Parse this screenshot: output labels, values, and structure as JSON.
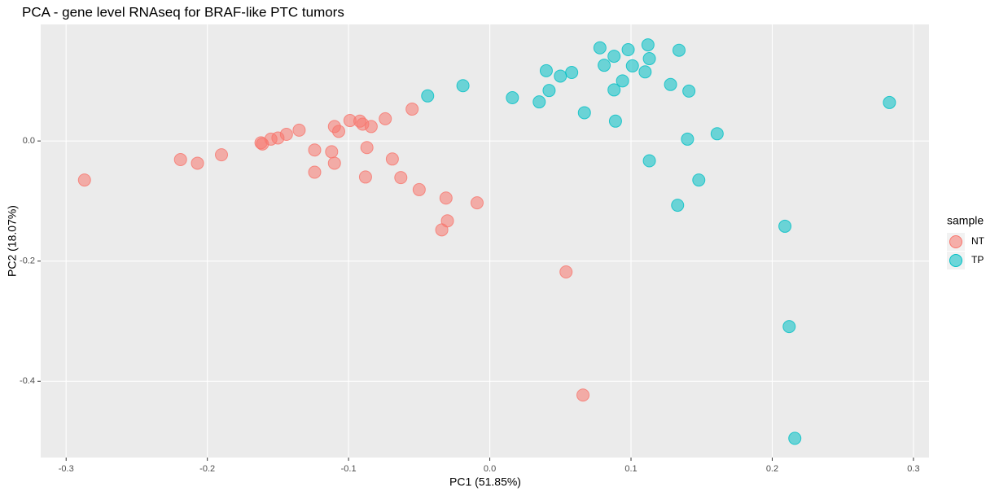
{
  "chart_data": {
    "type": "scatter",
    "title": "PCA - gene level RNAseq for BRAF-like PTC tumors",
    "x_label": "PC1 (51.85%)",
    "y_label": "PC2 (18.07%)",
    "legend_title": "sample",
    "legend_position": "right",
    "grid": true,
    "xlim": [
      -0.318,
      0.311
    ],
    "ylim": [
      -0.527,
      0.194
    ],
    "xticks": [
      -0.3,
      -0.2,
      -0.1,
      {
        "value": 0,
        "label": "0.0"
      },
      0.1,
      0.2,
      0.3
    ],
    "yticks": [
      -0.4,
      -0.2,
      {
        "value": 0,
        "label": "0.0"
      }
    ],
    "series": [
      {
        "name": "NT",
        "color": "#F8766D",
        "x": [
          -0.287,
          -0.219,
          -0.207,
          -0.19,
          -0.162,
          -0.161,
          -0.155,
          -0.15,
          -0.144,
          -0.135,
          -0.124,
          -0.124,
          -0.112,
          -0.11,
          -0.11,
          -0.107,
          -0.099,
          -0.092,
          -0.09,
          -0.087,
          -0.088,
          -0.084,
          -0.074,
          -0.069,
          -0.063,
          -0.055,
          -0.05,
          -0.031,
          -0.03,
          -0.034,
          -0.009,
          0.054,
          0.066
        ],
        "values": [
          -0.065,
          -0.031,
          -0.037,
          -0.023,
          -0.003,
          -0.005,
          0.003,
          0.005,
          0.011,
          0.018,
          -0.015,
          -0.052,
          -0.018,
          0.024,
          -0.037,
          0.016,
          0.034,
          0.033,
          0.028,
          -0.011,
          -0.06,
          0.024,
          0.037,
          -0.03,
          -0.061,
          0.053,
          -0.081,
          -0.095,
          -0.133,
          -0.148,
          -0.103,
          -0.218,
          -0.423
        ]
      },
      {
        "name": "TP",
        "color": "#00BFC4",
        "x": [
          -0.044,
          -0.019,
          0.016,
          0.035,
          0.04,
          0.042,
          0.05,
          0.058,
          0.067,
          0.078,
          0.081,
          0.088,
          0.088,
          0.089,
          0.094,
          0.098,
          0.101,
          0.11,
          0.112,
          0.113,
          0.113,
          0.128,
          0.134,
          0.133,
          0.14,
          0.141,
          0.148,
          0.161,
          0.209,
          0.212,
          0.216,
          0.283
        ],
        "values": [
          0.075,
          0.092,
          0.072,
          0.065,
          0.117,
          0.084,
          0.108,
          0.114,
          0.047,
          0.155,
          0.126,
          0.141,
          0.085,
          0.033,
          0.1,
          0.152,
          0.125,
          0.115,
          0.16,
          0.137,
          -0.033,
          0.094,
          0.151,
          -0.107,
          0.003,
          0.083,
          -0.065,
          0.012,
          -0.142,
          -0.309,
          -0.495,
          0.064
        ]
      }
    ]
  }
}
